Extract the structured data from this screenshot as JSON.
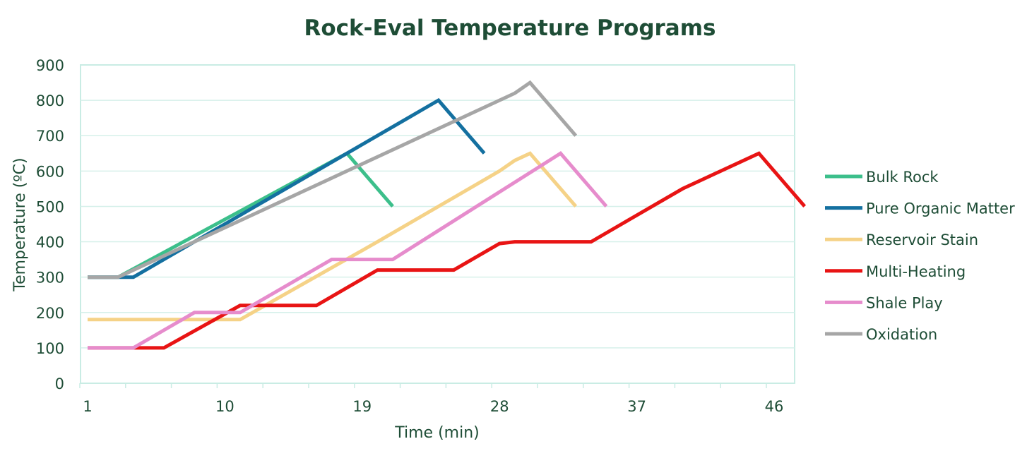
{
  "chart_data": {
    "type": "line",
    "title": "Rock-Eval Temperature Programs",
    "xlabel": "Time (min)",
    "ylabel": "Temperature (ºC)",
    "xlim": [
      1,
      47
    ],
    "ylim": [
      0,
      900
    ],
    "x_ticks": [
      1,
      10,
      19,
      28,
      37,
      46
    ],
    "y_ticks": [
      0,
      100,
      200,
      300,
      400,
      500,
      600,
      700,
      800,
      900
    ],
    "grid": "horizontal",
    "legend_position": "right",
    "series": [
      {
        "name": "Bulk Rock",
        "color": "#3cbf8b",
        "x": [
          1,
          3,
          18,
          21
        ],
        "y": [
          300,
          300,
          650,
          500
        ]
      },
      {
        "name": "Pure Organic Matter",
        "color": "#1470a0",
        "x": [
          1,
          4,
          12,
          20,
          22,
          23,
          24,
          27
        ],
        "y": [
          300,
          300,
          500,
          700,
          750,
          775,
          800,
          650
        ]
      },
      {
        "name": "Reservoir Stain",
        "color": "#f5d287",
        "x": [
          1,
          11,
          20,
          28,
          29,
          30,
          33
        ],
        "y": [
          180,
          180,
          400,
          600,
          630,
          650,
          500
        ]
      },
      {
        "name": "Multi-Heating",
        "color": "#e81414",
        "x": [
          1,
          6,
          11,
          16,
          18,
          20,
          25,
          27,
          28,
          29,
          34,
          36,
          40,
          45,
          48
        ],
        "y": [
          100,
          100,
          220,
          220,
          270,
          320,
          320,
          370,
          395,
          400,
          400,
          450,
          550,
          650,
          500
        ]
      },
      {
        "name": "Shale Play",
        "color": "#e68ccc",
        "x": [
          1,
          4,
          8,
          11,
          17,
          21,
          32,
          35
        ],
        "y": [
          100,
          100,
          200,
          200,
          350,
          350,
          650,
          500
        ]
      },
      {
        "name": "Oxidation",
        "color": "#a6a6a6",
        "x": [
          1,
          3,
          13,
          29,
          30,
          33
        ],
        "y": [
          300,
          300,
          500,
          820,
          850,
          700
        ]
      }
    ]
  }
}
